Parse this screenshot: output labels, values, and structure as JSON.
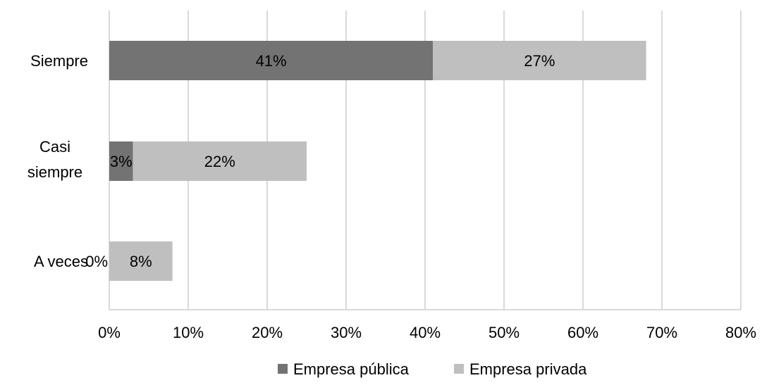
{
  "chart_data": {
    "type": "bar",
    "orientation": "horizontal",
    "stacked": true,
    "categories": [
      "Siempre",
      "Casi siempre",
      "A veces"
    ],
    "series": [
      {
        "name": "Empresa pública",
        "values": [
          41,
          3,
          0
        ],
        "labels": [
          "41%",
          "3%",
          "0%"
        ],
        "color": "#737373"
      },
      {
        "name": "Empresa privada",
        "values": [
          27,
          22,
          8
        ],
        "labels": [
          "27%",
          "22%",
          "8%"
        ],
        "color": "#bfbfbf"
      }
    ],
    "xlim": [
      0,
      80
    ],
    "xticks": [
      0,
      10,
      20,
      30,
      40,
      50,
      60,
      70,
      80
    ],
    "xtick_labels": [
      "0%",
      "10%",
      "20%",
      "30%",
      "40%",
      "50%",
      "60%",
      "70%",
      "80%"
    ],
    "grid": true,
    "legend_position": "bottom",
    "title": "",
    "xlabel": "",
    "ylabel": ""
  }
}
